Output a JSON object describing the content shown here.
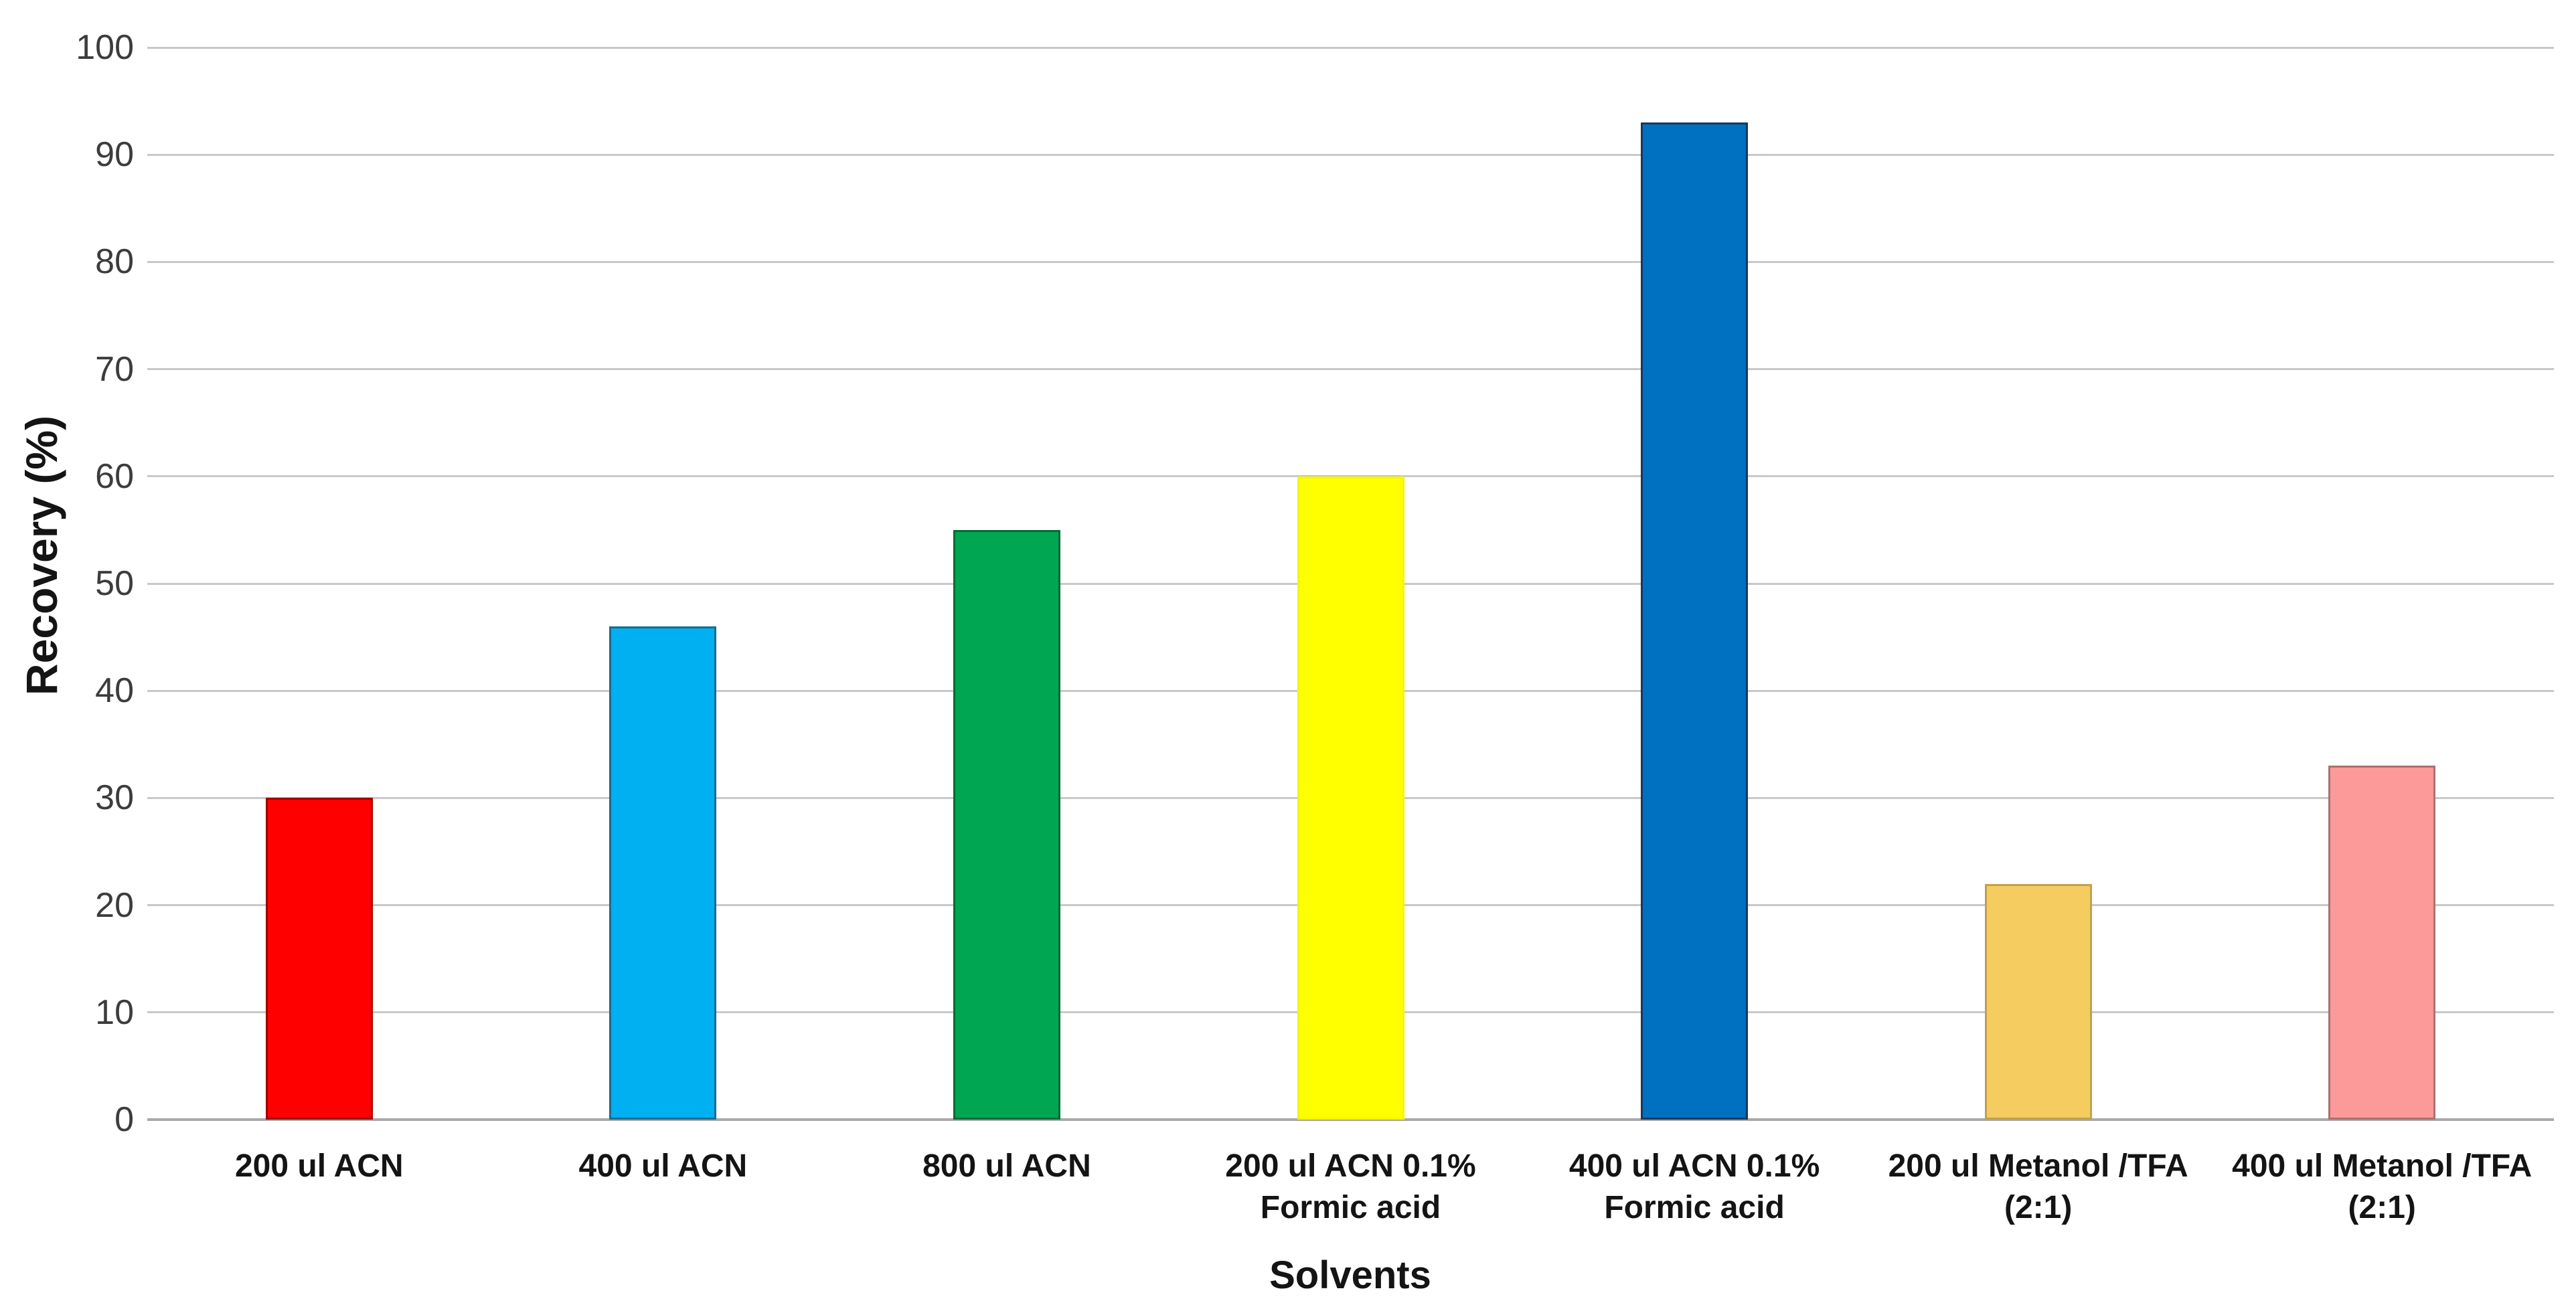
{
  "chart_data": {
    "type": "bar",
    "title": "",
    "xlabel": "Solvents",
    "ylabel": "Recovery (%)",
    "ylim": [
      0,
      100
    ],
    "yticks": [
      0,
      10,
      20,
      30,
      40,
      50,
      60,
      70,
      80,
      90,
      100
    ],
    "grid": true,
    "legend": false,
    "categories": [
      "200 ul ACN",
      "400 ul ACN",
      "800 ul ACN",
      "200 ul ACN 0.1%\nFormic acid",
      "400 ul ACN 0.1%\nFormic acid",
      "200 ul Metanol /TFA\n(2:1)",
      "400 ul Metanol /TFA\n(2:1)"
    ],
    "values": [
      30,
      46,
      55,
      60,
      93,
      22,
      33
    ],
    "bar_colors": [
      "#FE0000",
      "#00B0F0",
      "#00A651",
      "#FFFF00",
      "#0070C0",
      "#F5CC60",
      "#FC9A99"
    ],
    "bar_border_colors": [
      "#A00000",
      "#1A6C8F",
      "#046B35",
      "#F5F500",
      "#15395D",
      "#BFA14F",
      "#AA7171"
    ],
    "colors": {
      "gridline": "#C8C8C8",
      "axis_line": "#A8A8A8",
      "tick_label": "#3C3C3C",
      "text": "#141414",
      "background": "#FFFFFF"
    }
  }
}
